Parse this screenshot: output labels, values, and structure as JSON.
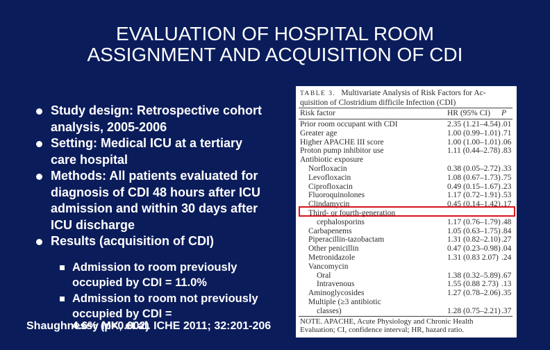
{
  "slide": {
    "title_lines": [
      "EVALUATION OF HOSPITAL ROOM",
      "ASSIGNMENT AND ACQUISITION OF CDI"
    ],
    "bullets": [
      "Study design: Retrospective cohort analysis, 2005-2006",
      "Setting: Medical ICU at a tertiary care hospital",
      "Methods: All patients evaluated for diagnosis of CDI 48 hours after ICU admission and within 30 days after ICU discharge",
      "Results (acquisition of CDI)"
    ],
    "sub_bullets": [
      "Admission to room previously occupied by CDI = 11.0%",
      "Admission to room not previously occupied by CDI ="
    ],
    "sub_bullet_tail": "4.6% (p=0.002)",
    "citation": "Shaughnessy MK, et al. ICHE 2011; 32:201-206"
  },
  "table": {
    "label": "TABLE 3.",
    "caption_line1": "Multivariate Analysis of Risk Factors for Ac-",
    "caption_line2": "quisition of Clostridium difficile Infection (CDI)",
    "headers": {
      "factor": "Risk factor",
      "hr": "HR (95% CI)",
      "p": "P"
    },
    "rows": [
      {
        "factor": "Prior room occupant with CDI",
        "hr": "2.35 (1.21–4.54)",
        "p": ".01",
        "indent": 0
      },
      {
        "factor": "Greater age",
        "hr": "1.00 (0.99–1.01)",
        "p": ".71",
        "indent": 0
      },
      {
        "factor": "Higher APACHE III score",
        "hr": "1.00 (1.00–1.01)",
        "p": ".06",
        "indent": 0
      },
      {
        "factor": "Proton pump inhibitor use",
        "hr": "1.11 (0.44–2.78)",
        "p": ".83",
        "indent": 0
      },
      {
        "factor": "Antibiotic exposure",
        "hr": "",
        "p": "",
        "indent": 0
      },
      {
        "factor": "Norfloxacin",
        "hr": "0.38 (0.05–2.72)",
        "p": ".33",
        "indent": 1
      },
      {
        "factor": "Levofloxacin",
        "hr": "1.08 (0.67–1.73)",
        "p": ".75",
        "indent": 1
      },
      {
        "factor": "Ciprofloxacin",
        "hr": "0.49 (0.15–1.67)",
        "p": ".23",
        "indent": 1
      },
      {
        "factor": "Fluoroquinolones",
        "hr": "1.17 (0.72–1.91)",
        "p": ".53",
        "indent": 1
      },
      {
        "factor": "Clindamycin",
        "hr": "0.45 (0.14–1.42)",
        "p": ".17",
        "indent": 1
      },
      {
        "factor": "Third- or fourth-generation",
        "hr": "",
        "p": "",
        "indent": 1
      },
      {
        "factor": "cephalosporins",
        "hr": "1.17 (0.76–1.79)",
        "p": ".48",
        "indent": 2
      },
      {
        "factor": "Carbapenems",
        "hr": "1.05 (0.63–1.75)",
        "p": ".84",
        "indent": 1
      },
      {
        "factor": "Piperacillin-tazobactam",
        "hr": "1.31 (0.82–2.10)",
        "p": ".27",
        "indent": 1
      },
      {
        "factor": "Other penicillin",
        "hr": "0.47 (0.23–0.98)",
        "p": ".04",
        "indent": 1
      },
      {
        "factor": "Metronidazole",
        "hr": "1.31 (0.83 2.07)",
        "p": ".24",
        "indent": 1
      },
      {
        "factor": "Vancomycin",
        "hr": "",
        "p": "",
        "indent": 1
      },
      {
        "factor": "Oral",
        "hr": "1.38 (0.32–5.89)",
        "p": ".67",
        "indent": 2
      },
      {
        "factor": "Intravenous",
        "hr": "1.55 (0.88 2.73)",
        "p": ".13",
        "indent": 2
      },
      {
        "factor": "Aminoglycosides",
        "hr": "1.27 (0.78–2.06)",
        "p": ".35",
        "indent": 1
      },
      {
        "factor": "Multiple (≥3 antibiotic",
        "hr": "",
        "p": "",
        "indent": 1
      },
      {
        "factor": "classes)",
        "hr": "1.28 (0.75–2.21)",
        "p": ".37",
        "indent": 2
      }
    ],
    "footnote_line1": "NOTE.   APACHE, Acute Physiology and Chronic Health",
    "footnote_line2": "Evaluation; CI, confidence interval; HR, hazard ratio.",
    "highlight_color": "#d8141b"
  }
}
